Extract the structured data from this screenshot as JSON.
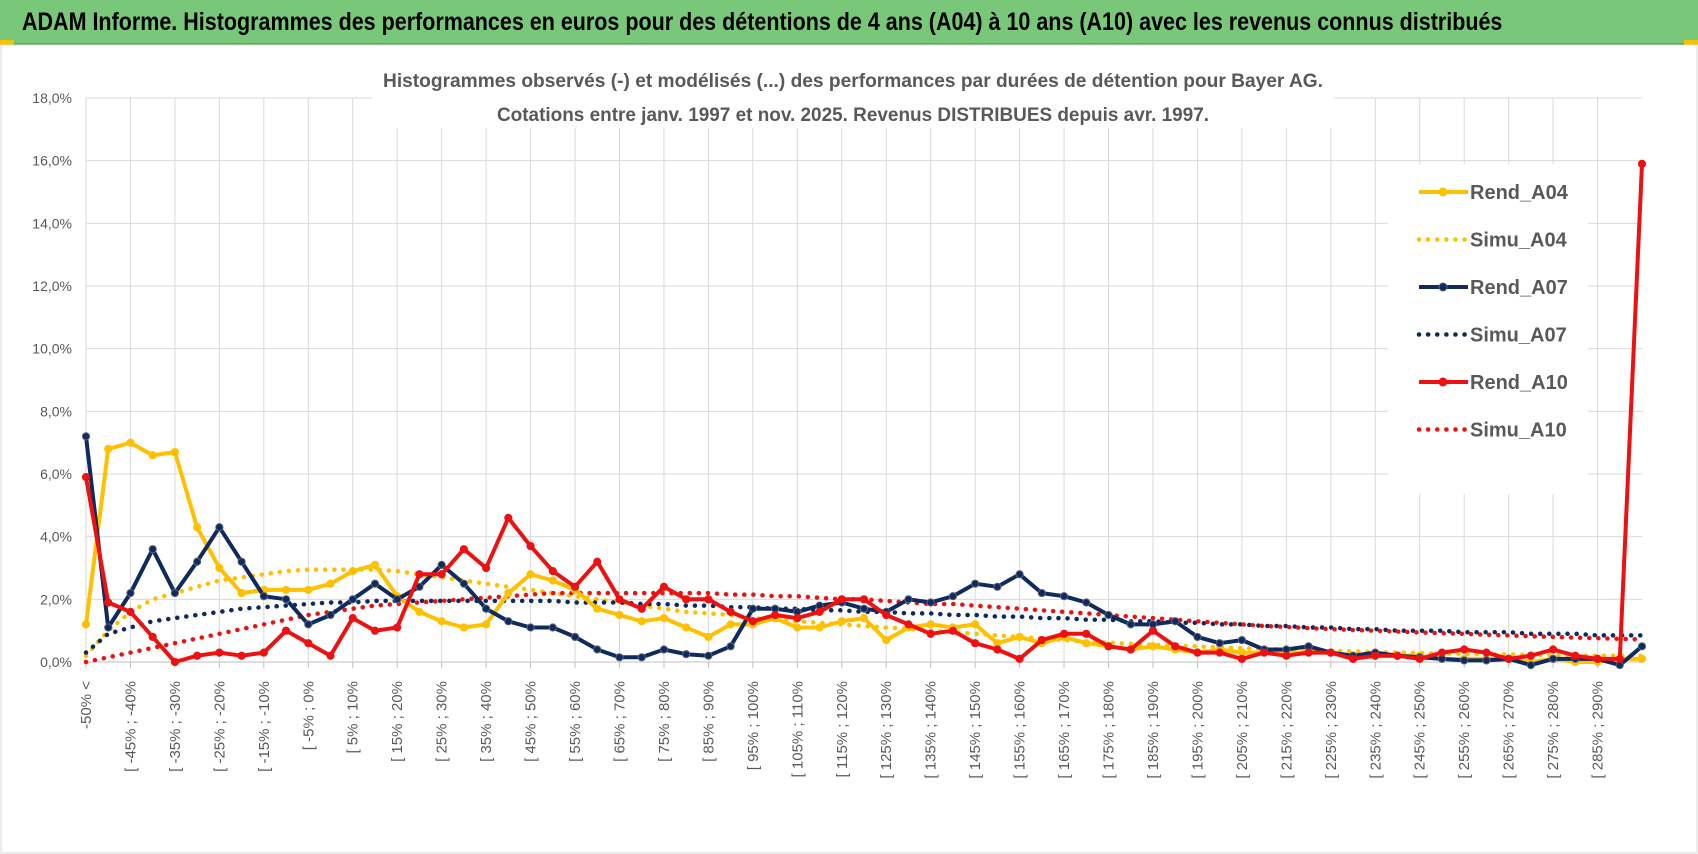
{
  "page": {
    "header_title": "ADAM Informe. Histogrammes des performances en euros pour des détentions de 4 ans (A04) à 10 ans (A10) avec les revenus connus distribués"
  },
  "colors": {
    "header_bg": "#79c879",
    "yellow": "#FFC000",
    "navy": "#0F2A5C",
    "red": "#EE1111",
    "grid": "#d9d9d9",
    "text": "#595959"
  },
  "chart_data": {
    "type": "line",
    "title_lines": [
      "Histogrammes observés (-) et modélisés (...)  des performances par durées de détention pour Bayer AG.",
      "Cotations entre janv. 1997 et nov. 2025. Revenus DISTRIBUES  depuis avr. 1997."
    ],
    "ylim": [
      0,
      18
    ],
    "y_ticks": [
      "0,0%",
      "2,0%",
      "4,0%",
      "6,0%",
      "8,0%",
      "10,0%",
      "12,0%",
      "14,0%",
      "16,0%",
      "18,0%"
    ],
    "x_tick_labels": [
      "-50% <",
      "[ -45% ; -40%",
      "[ -35% ; -30%",
      "[ -25% ; -20%",
      "[ -15% ; -10%",
      "[ -5% ; 0%",
      "[ 5% ; 10%",
      "[ 15% ; 20%",
      "[ 25% ; 30%",
      "[ 35% ; 40%",
      "[ 45% ; 50%",
      "[ 55% ; 60%",
      "[ 65% ; 70%",
      "[ 75% ; 80%",
      "[ 85% ; 90%",
      "[ 95% ; 100%",
      "[ 105% ; 110%",
      "[ 115% ; 120%",
      "[ 125% ; 130%",
      "[ 135% ; 140%",
      "[ 145% ; 150%",
      "[ 155% ; 160%",
      "[ 165% ; 170%",
      "[ 175% ; 180%",
      "[ 185% ; 190%",
      "[ 195% ; 200%",
      "[ 205% ; 210%",
      "[ 215% ; 220%",
      "[ 225% ; 230%",
      "[ 235% ; 240%",
      "[ 245% ; 250%",
      "[ 255% ; 260%",
      "[ 265% ; 270%",
      "[ 275% ; 280%",
      "[ 285% ; 290%"
    ],
    "n_points": 71,
    "legend_position": "right",
    "series": [
      {
        "name": "Rend_A04",
        "style": "solid",
        "color": "#FFC000",
        "values": [
          1.2,
          6.8,
          7.0,
          6.6,
          6.7,
          4.3,
          3.0,
          2.2,
          2.3,
          2.3,
          2.3,
          2.5,
          2.9,
          3.1,
          2.1,
          1.6,
          1.3,
          1.1,
          1.2,
          2.2,
          2.8,
          2.6,
          2.3,
          1.7,
          1.5,
          1.3,
          1.4,
          1.1,
          0.8,
          1.2,
          1.2,
          1.4,
          1.1,
          1.1,
          1.3,
          1.4,
          0.7,
          1.1,
          1.2,
          1.1,
          1.2,
          0.6,
          0.8,
          0.6,
          0.8,
          0.6,
          0.5,
          0.4,
          0.5,
          0.4,
          0.3,
          0.4,
          0.3,
          0.3,
          0.3,
          0.3,
          0.3,
          0.2,
          0.2,
          0.2,
          0.2,
          0.1,
          0.1,
          0.1,
          0.1,
          0.0,
          0.1,
          0.0,
          0.0,
          0.1,
          0.1
        ]
      },
      {
        "name": "Simu_A04",
        "style": "dotted",
        "color": "#FFC000",
        "values": [
          0.2,
          1.0,
          1.6,
          2.0,
          2.2,
          2.4,
          2.6,
          2.7,
          2.8,
          2.9,
          2.95,
          2.95,
          2.95,
          2.95,
          2.9,
          2.8,
          2.7,
          2.6,
          2.5,
          2.4,
          2.3,
          2.2,
          2.1,
          2.0,
          1.9,
          1.8,
          1.7,
          1.6,
          1.55,
          1.5,
          1.4,
          1.35,
          1.3,
          1.25,
          1.2,
          1.15,
          1.1,
          1.05,
          1.0,
          0.95,
          0.9,
          0.85,
          0.8,
          0.75,
          0.7,
          0.65,
          0.62,
          0.58,
          0.55,
          0.52,
          0.5,
          0.47,
          0.44,
          0.42,
          0.4,
          0.38,
          0.36,
          0.34,
          0.32,
          0.3,
          0.29,
          0.27,
          0.26,
          0.25,
          0.24,
          0.23,
          0.22,
          0.21,
          0.2,
          0.2,
          0.19
        ]
      },
      {
        "name": "Rend_A07",
        "style": "solid",
        "color": "#0F2A5C",
        "values": [
          7.2,
          1.1,
          2.2,
          3.6,
          2.2,
          3.2,
          4.3,
          3.2,
          2.1,
          2.0,
          1.2,
          1.5,
          2.0,
          2.5,
          2.0,
          2.4,
          3.1,
          2.5,
          1.7,
          1.3,
          1.1,
          1.1,
          0.8,
          0.4,
          0.15,
          0.15,
          0.4,
          0.25,
          0.2,
          0.5,
          1.7,
          1.7,
          1.6,
          1.8,
          1.9,
          1.7,
          1.6,
          2.0,
          1.9,
          2.1,
          2.5,
          2.4,
          2.8,
          2.2,
          2.1,
          1.9,
          1.5,
          1.2,
          1.2,
          1.3,
          0.8,
          0.6,
          0.7,
          0.4,
          0.4,
          0.5,
          0.3,
          0.2,
          0.3,
          0.2,
          0.15,
          0.1,
          0.05,
          0.05,
          0.1,
          -0.1,
          0.1,
          0.1,
          0.1,
          -0.1,
          0.5
        ]
      },
      {
        "name": "Simu_A07",
        "style": "dotted",
        "color": "#0F2A5C",
        "values": [
          0.3,
          0.9,
          1.1,
          1.3,
          1.4,
          1.5,
          1.6,
          1.7,
          1.75,
          1.8,
          1.85,
          1.9,
          1.9,
          1.95,
          1.95,
          1.95,
          1.95,
          1.95,
          1.95,
          1.95,
          1.95,
          1.95,
          1.9,
          1.9,
          1.9,
          1.85,
          1.85,
          1.8,
          1.8,
          1.75,
          1.75,
          1.7,
          1.7,
          1.65,
          1.65,
          1.6,
          1.6,
          1.55,
          1.55,
          1.5,
          1.5,
          1.45,
          1.45,
          1.4,
          1.4,
          1.35,
          1.35,
          1.3,
          1.3,
          1.25,
          1.25,
          1.2,
          1.2,
          1.15,
          1.15,
          1.1,
          1.1,
          1.05,
          1.05,
          1.0,
          1.0,
          1.0,
          0.95,
          0.95,
          0.95,
          0.9,
          0.9,
          0.9,
          0.85,
          0.85,
          0.85
        ]
      },
      {
        "name": "Rend_A10",
        "style": "solid",
        "color": "#EE1111",
        "values": [
          5.9,
          1.9,
          1.6,
          0.8,
          0.0,
          0.2,
          0.3,
          0.2,
          0.3,
          1.0,
          0.6,
          0.2,
          1.4,
          1.0,
          1.1,
          2.8,
          2.8,
          3.6,
          3.0,
          4.6,
          3.7,
          2.9,
          2.4,
          3.2,
          2.0,
          1.7,
          2.4,
          2.0,
          2.0,
          1.6,
          1.3,
          1.5,
          1.4,
          1.6,
          2.0,
          2.0,
          1.5,
          1.2,
          0.9,
          1.0,
          0.6,
          0.4,
          0.1,
          0.7,
          0.9,
          0.9,
          0.5,
          0.4,
          1.0,
          0.5,
          0.3,
          0.3,
          0.1,
          0.3,
          0.2,
          0.3,
          0.3,
          0.1,
          0.2,
          0.2,
          0.1,
          0.3,
          0.4,
          0.3,
          0.1,
          0.2,
          0.4,
          0.2,
          0.1,
          0.1,
          15.9
        ]
      },
      {
        "name": "Simu_A10",
        "style": "dotted",
        "color": "#EE1111",
        "values": [
          0.0,
          0.15,
          0.3,
          0.45,
          0.6,
          0.75,
          0.9,
          1.05,
          1.2,
          1.35,
          1.5,
          1.6,
          1.7,
          1.8,
          1.85,
          1.9,
          1.95,
          2.0,
          2.05,
          2.1,
          2.15,
          2.2,
          2.2,
          2.2,
          2.2,
          2.2,
          2.2,
          2.2,
          2.2,
          2.15,
          2.15,
          2.1,
          2.1,
          2.05,
          2.0,
          2.0,
          1.95,
          1.9,
          1.85,
          1.85,
          1.8,
          1.75,
          1.7,
          1.65,
          1.6,
          1.55,
          1.5,
          1.45,
          1.4,
          1.35,
          1.3,
          1.25,
          1.2,
          1.15,
          1.12,
          1.08,
          1.05,
          1.02,
          1.0,
          0.97,
          0.94,
          0.92,
          0.9,
          0.87,
          0.85,
          0.82,
          0.8,
          0.78,
          0.76,
          0.74,
          0.72
        ]
      }
    ]
  }
}
